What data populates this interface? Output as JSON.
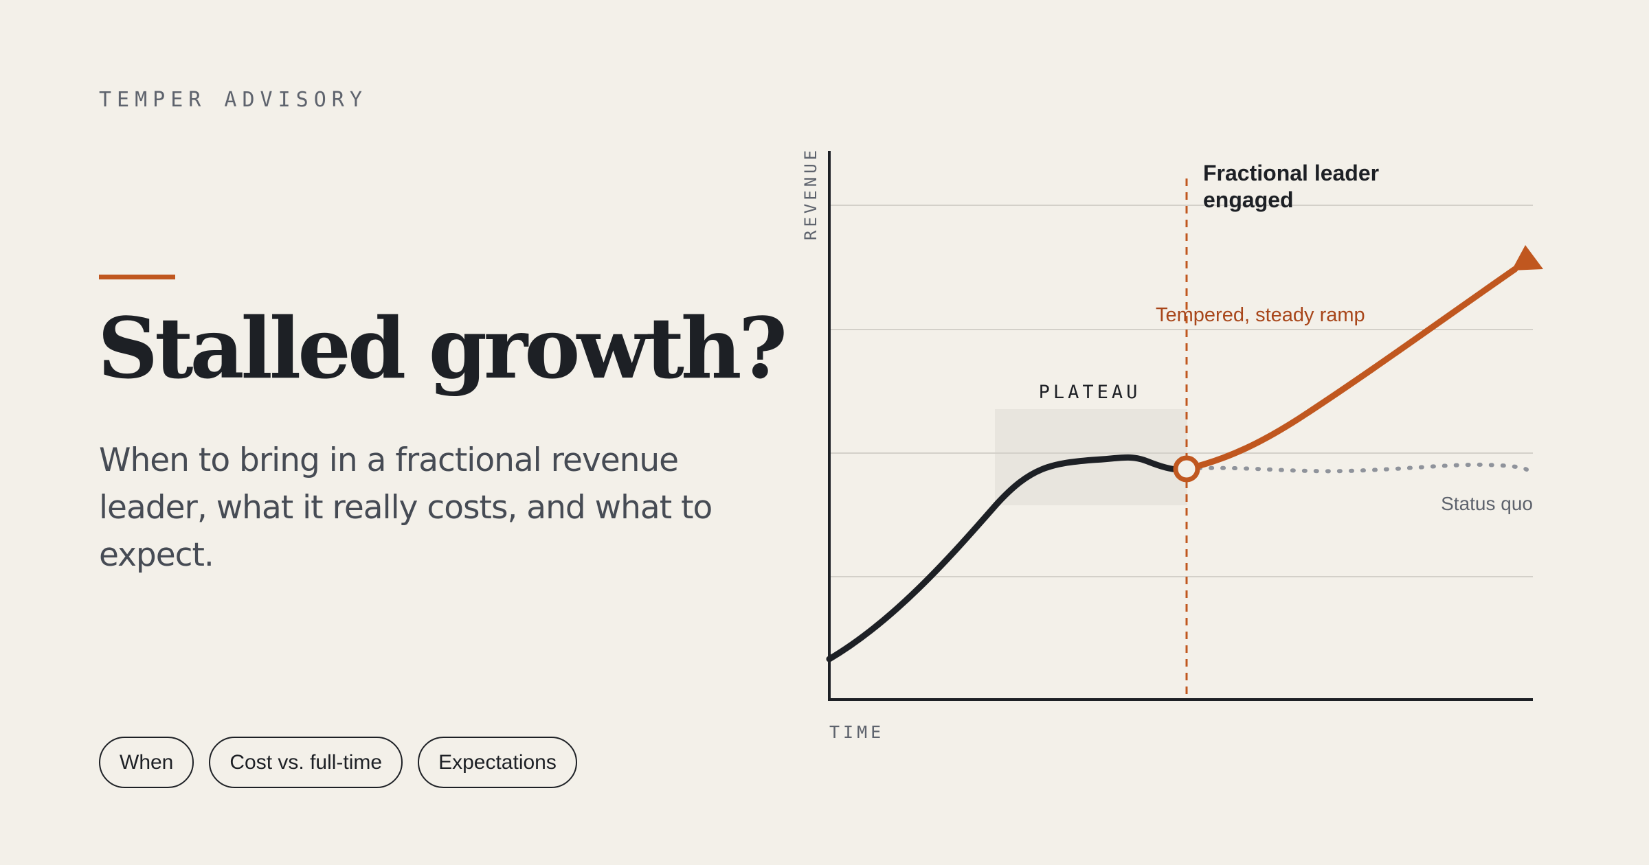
{
  "brand": "TEMPER ADVISORY",
  "headline": "Stalled growth?",
  "subtitle": "When to bring in a fractional revenue leader, what it really costs, and what to expect.",
  "pills": [
    "When",
    "Cost vs. full-time",
    "Expectations"
  ],
  "chart": {
    "y_axis_label": "REVENUE",
    "x_axis_label": "TIME",
    "plateau_label": "PLATEAU",
    "event_label_line1": "Fractional leader",
    "event_label_line2": "engaged",
    "ramp_label": "Tempered, steady ramp",
    "status_quo_label": "Status quo"
  },
  "colors": {
    "background": "#f3f0e9",
    "ink": "#1d2025",
    "accent": "#c0571f",
    "accent_text": "#a8461a",
    "muted": "#5e636d",
    "status_quo": "#8f939b"
  }
}
